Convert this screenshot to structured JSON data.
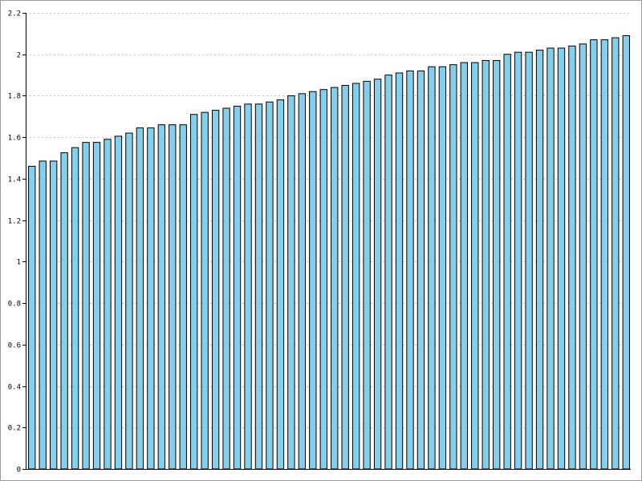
{
  "chart_data": {
    "type": "bar",
    "title": "",
    "xlabel": "",
    "ylabel": "",
    "ylim": [
      0,
      2.2
    ],
    "yticks": [
      "0",
      "0.2",
      "0.4",
      "0.6",
      "0.8",
      "1",
      "1.2",
      "1.4",
      "1.6",
      "1.8",
      "2",
      "2.2"
    ],
    "grid": true,
    "legend": "none",
    "values": [
      1.46,
      1.485,
      1.485,
      1.525,
      1.55,
      1.575,
      1.575,
      1.59,
      1.605,
      1.62,
      1.645,
      1.645,
      1.66,
      1.66,
      1.66,
      1.71,
      1.72,
      1.73,
      1.74,
      1.75,
      1.76,
      1.76,
      1.77,
      1.78,
      1.8,
      1.81,
      1.82,
      1.83,
      1.84,
      1.85,
      1.86,
      1.87,
      1.88,
      1.9,
      1.91,
      1.92,
      1.92,
      1.94,
      1.94,
      1.95,
      1.96,
      1.96,
      1.97,
      1.97,
      2.0,
      2.01,
      2.01,
      2.02,
      2.03,
      2.03,
      2.04,
      2.05,
      2.07,
      2.07,
      2.08,
      2.09
    ],
    "colors": {
      "bar_fill": "#87ceeb",
      "bar_stroke": "#000000",
      "grid": "#c0c0c0",
      "axis": "#000000"
    }
  }
}
